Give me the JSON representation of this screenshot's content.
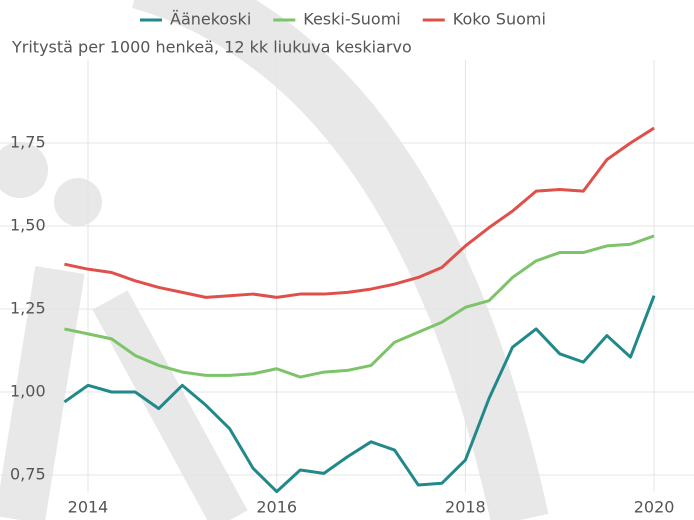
{
  "chart_data": {
    "type": "line",
    "subtitle": "Yritystä per 1000 henkeä, 12 kk liukuva keskiarvo",
    "x": [
      2013.75,
      2014,
      2014.25,
      2014.5,
      2014.75,
      2015,
      2015.25,
      2015.5,
      2015.75,
      2016,
      2016.25,
      2016.5,
      2016.75,
      2017,
      2017.25,
      2017.5,
      2017.75,
      2018,
      2018.25,
      2018.5,
      2018.75,
      2019,
      2019.25,
      2019.5,
      2019.75,
      2020
    ],
    "series": [
      {
        "name": "Äänekoski",
        "color": "#21898a",
        "values": [
          0.97,
          1.02,
          1.0,
          1.0,
          0.95,
          1.02,
          0.96,
          0.89,
          0.77,
          0.7,
          0.765,
          0.755,
          0.805,
          0.85,
          0.825,
          0.72,
          0.725,
          0.795,
          0.98,
          1.135,
          1.19,
          1.115,
          1.09,
          1.17,
          1.105,
          1.29
        ]
      },
      {
        "name": "Keski-Suomi",
        "color": "#7dc36a",
        "values": [
          1.19,
          1.175,
          1.16,
          1.11,
          1.08,
          1.06,
          1.05,
          1.05,
          1.055,
          1.07,
          1.045,
          1.06,
          1.065,
          1.08,
          1.15,
          1.18,
          1.21,
          1.255,
          1.275,
          1.345,
          1.395,
          1.42,
          1.42,
          1.44,
          1.445,
          1.47
        ]
      },
      {
        "name": "Koko Suomi",
        "color": "#e0504a",
        "values": [
          1.385,
          1.37,
          1.36,
          1.335,
          1.315,
          1.3,
          1.285,
          1.29,
          1.295,
          1.285,
          1.295,
          1.295,
          1.3,
          1.31,
          1.325,
          1.345,
          1.375,
          1.44,
          1.495,
          1.545,
          1.605,
          1.61,
          1.605,
          1.7,
          1.75,
          1.795
        ]
      }
    ],
    "xlim": [
      2013.7,
      2020.1
    ],
    "xticks": [
      2014,
      2016,
      2018,
      2020
    ],
    "ylim": [
      0.7,
      2.0
    ],
    "yticks": [
      {
        "value": 0.75,
        "label": "0,75"
      },
      {
        "value": 1.0,
        "label": "1,00"
      },
      {
        "value": 1.25,
        "label": "1,25"
      },
      {
        "value": 1.5,
        "label": "1,50"
      },
      {
        "value": 1.75,
        "label": "1,75"
      }
    ],
    "grid": true
  }
}
